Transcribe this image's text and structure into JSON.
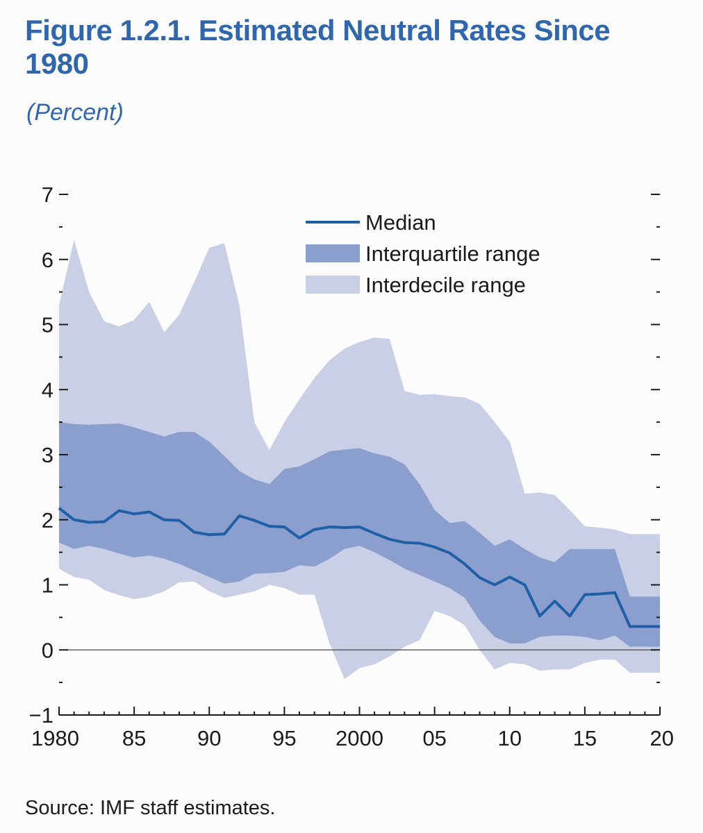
{
  "figure": {
    "title": "Figure 1.2.1.  Estimated Neutral Rates Since 1980",
    "subtitle": "(Percent)",
    "source": "Source: IMF staff estimates."
  },
  "chart_data": {
    "type": "area",
    "x": [
      1980,
      1981,
      1982,
      1983,
      1984,
      1985,
      1986,
      1987,
      1988,
      1989,
      1990,
      1991,
      1992,
      1993,
      1994,
      1995,
      1996,
      1997,
      1998,
      1999,
      2000,
      2001,
      2002,
      2003,
      2004,
      2005,
      2006,
      2007,
      2008,
      2009,
      2010,
      2011,
      2012,
      2013,
      2014,
      2015,
      2016,
      2017,
      2018,
      2019,
      2020
    ],
    "xlim": [
      1980,
      2020
    ],
    "ylim": [
      -1,
      7
    ],
    "x_ticks": [
      1980,
      1985,
      1990,
      1995,
      2000,
      2005,
      2010,
      2015,
      2020
    ],
    "x_tick_labels": [
      "1980",
      "85",
      "90",
      "95",
      "2000",
      "05",
      "10",
      "15",
      "20"
    ],
    "y_ticks": [
      -1,
      0,
      1,
      2,
      3,
      4,
      5,
      6,
      7
    ],
    "y_tick_labels": [
      "−1",
      "0",
      "1",
      "2",
      "3",
      "4",
      "5",
      "6",
      "7"
    ],
    "zero_line": true,
    "grid": false,
    "legend_position": "top-center",
    "series": [
      {
        "name": "Interdecile range",
        "kind": "band",
        "color": "#c9cfe5",
        "lower": [
          1.25,
          1.12,
          1.08,
          0.92,
          0.84,
          0.78,
          0.82,
          0.9,
          1.04,
          1.05,
          0.9,
          0.8,
          0.85,
          0.9,
          1.0,
          0.95,
          0.85,
          0.85,
          0.1,
          -0.45,
          -0.28,
          -0.22,
          -0.1,
          0.05,
          0.15,
          0.6,
          0.52,
          0.38,
          0.0,
          -0.3,
          -0.2,
          -0.22,
          -0.32,
          -0.3,
          -0.3,
          -0.2,
          -0.15,
          -0.15,
          -0.35,
          -0.35,
          -0.35
        ],
        "upper": [
          5.3,
          6.3,
          5.5,
          5.05,
          4.97,
          5.07,
          5.35,
          4.88,
          5.15,
          5.65,
          6.18,
          6.25,
          5.3,
          3.5,
          3.07,
          3.5,
          3.85,
          4.18,
          4.45,
          4.63,
          4.73,
          4.8,
          4.78,
          3.98,
          3.92,
          3.93,
          3.9,
          3.88,
          3.78,
          3.5,
          3.2,
          2.4,
          2.42,
          2.38,
          2.15,
          1.9,
          1.88,
          1.85,
          1.78,
          1.78,
          1.78
        ]
      },
      {
        "name": "Interquartile range",
        "kind": "band",
        "color": "#8b9fcf",
        "lower": [
          1.65,
          1.55,
          1.6,
          1.55,
          1.48,
          1.42,
          1.45,
          1.4,
          1.32,
          1.22,
          1.12,
          1.02,
          1.05,
          1.17,
          1.18,
          1.2,
          1.3,
          1.28,
          1.4,
          1.55,
          1.6,
          1.5,
          1.38,
          1.25,
          1.15,
          1.05,
          0.95,
          0.8,
          0.45,
          0.2,
          0.1,
          0.1,
          0.2,
          0.22,
          0.22,
          0.2,
          0.15,
          0.22,
          0.05,
          0.05,
          0.05
        ],
        "upper": [
          3.5,
          3.47,
          3.46,
          3.47,
          3.48,
          3.42,
          3.35,
          3.28,
          3.35,
          3.35,
          3.2,
          2.98,
          2.75,
          2.62,
          2.55,
          2.78,
          2.82,
          2.93,
          3.05,
          3.08,
          3.1,
          3.02,
          2.97,
          2.85,
          2.55,
          2.15,
          1.95,
          1.98,
          1.8,
          1.6,
          1.7,
          1.55,
          1.42,
          1.35,
          1.55,
          1.55,
          1.55,
          1.55,
          0.82,
          0.82,
          0.82
        ]
      },
      {
        "name": "Median",
        "kind": "line",
        "color": "#1f5fa8",
        "values": [
          2.18,
          2.0,
          1.96,
          1.97,
          2.14,
          2.09,
          2.12,
          2.0,
          1.99,
          1.81,
          1.77,
          1.78,
          2.06,
          1.99,
          1.9,
          1.89,
          1.72,
          1.85,
          1.89,
          1.88,
          1.89,
          1.79,
          1.7,
          1.65,
          1.64,
          1.58,
          1.49,
          1.32,
          1.11,
          1.0,
          1.12,
          1.0,
          0.52,
          0.75,
          0.52,
          0.85,
          0.86,
          0.88,
          0.36,
          0.36,
          0.36
        ]
      }
    ]
  }
}
